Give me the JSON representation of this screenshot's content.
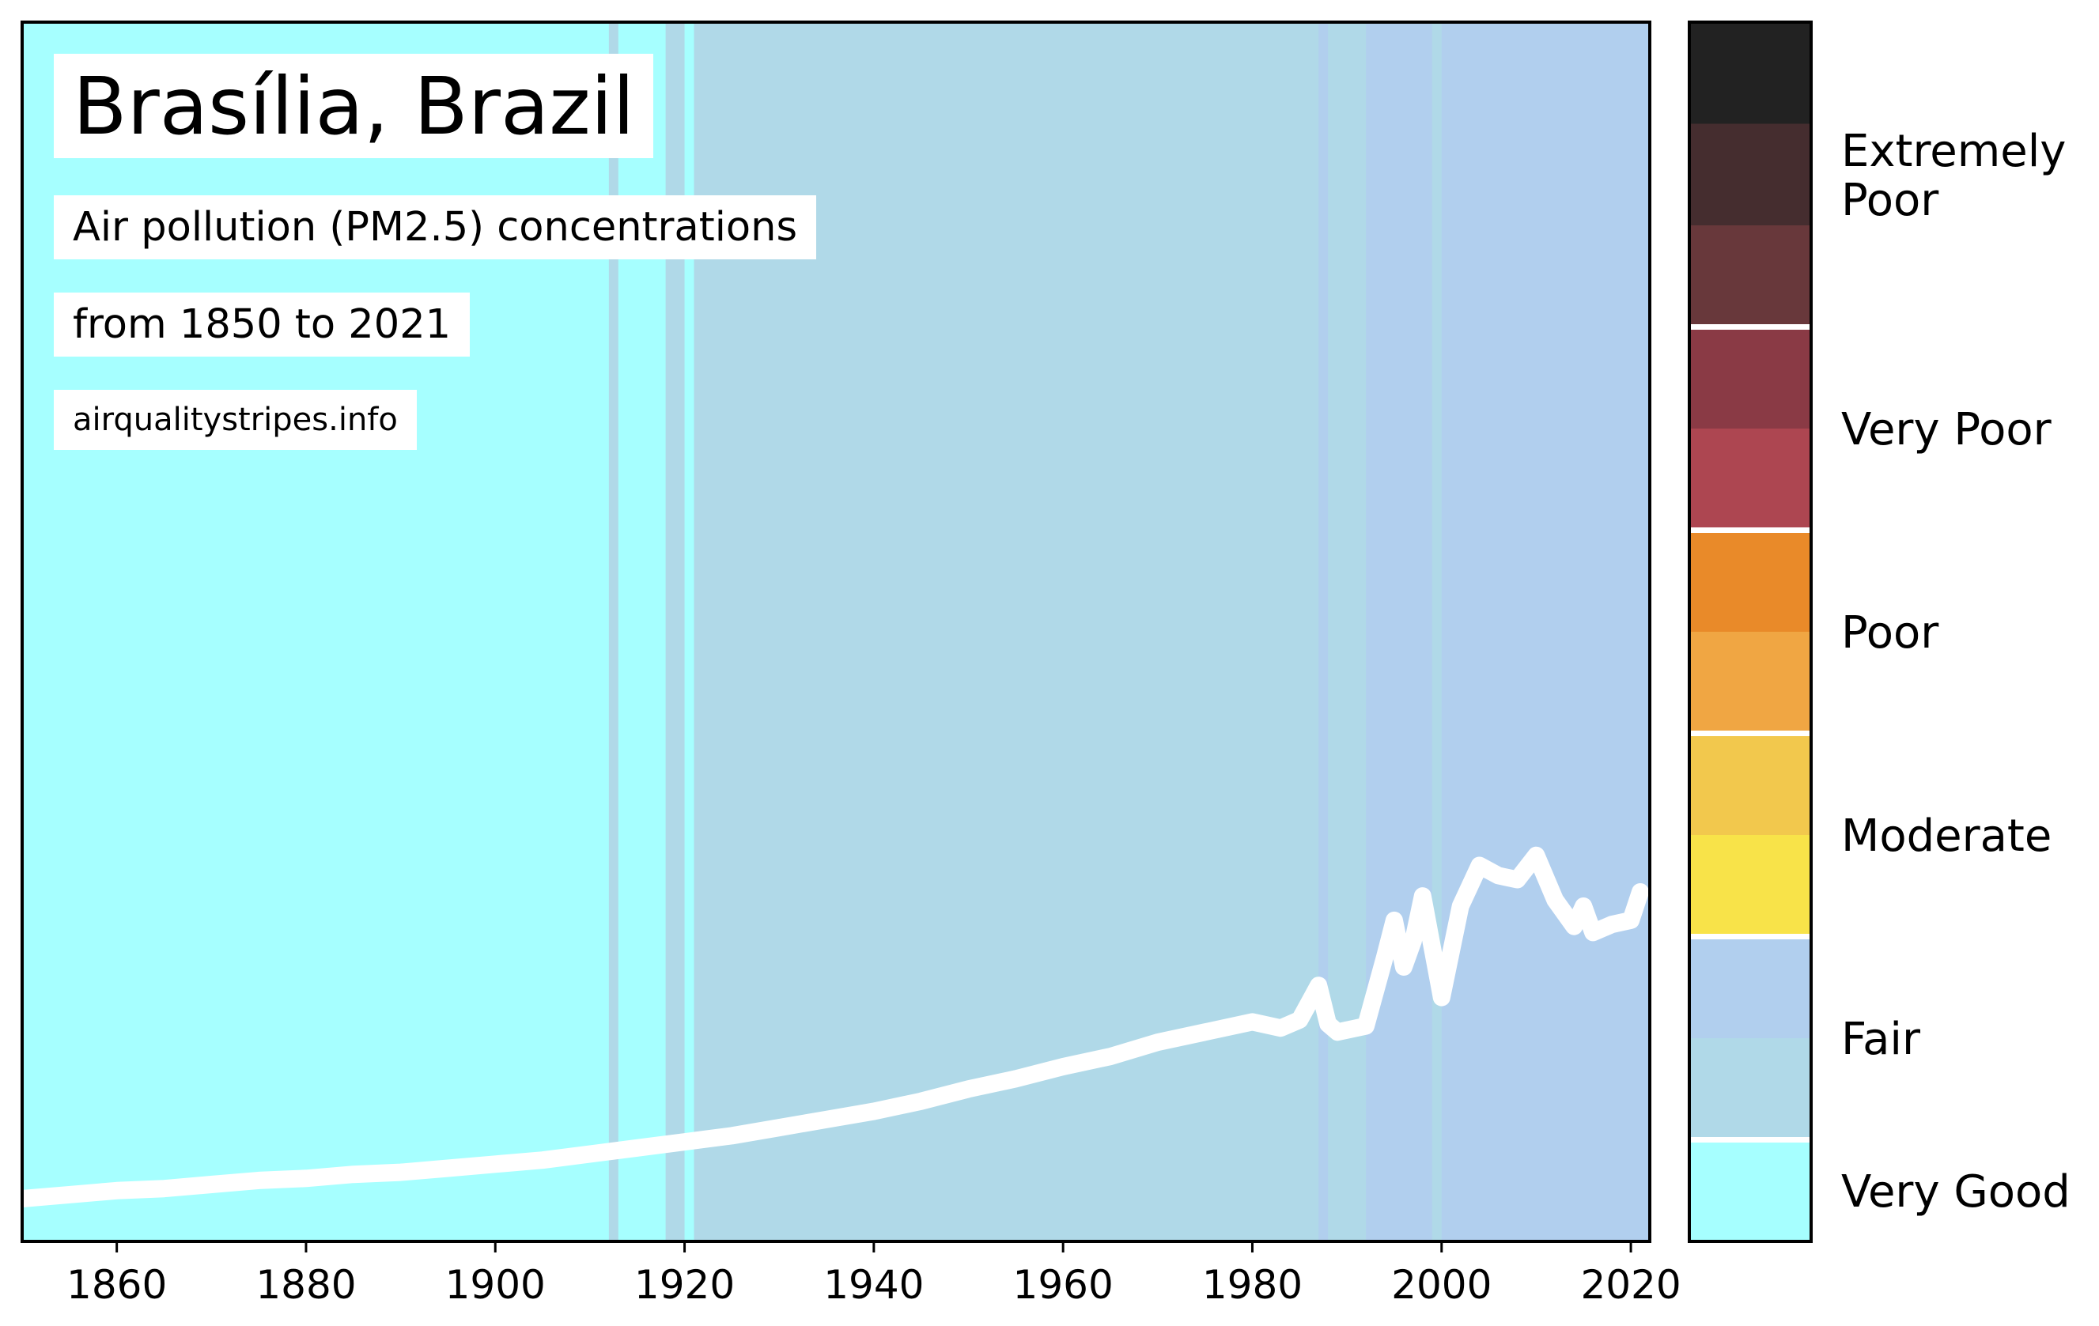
{
  "title": "Brasília, Brazil",
  "subtitle": "Air pollution (PM2.5) concentrations",
  "period": "from 1850 to 2021",
  "source": "airqualitystripes.info",
  "colors": {
    "very_good": "#a6ffff",
    "good": "#b0d9e8",
    "fair": "#b1cfee",
    "line": "#ffffff"
  },
  "chart_data": {
    "type": "line",
    "title": "Brasília, Brazil",
    "xlabel": "",
    "ylabel": "",
    "xlim": [
      1850,
      2022
    ],
    "ylim": [
      0,
      60
    ],
    "grid": false,
    "x_ticks": [
      1860,
      1880,
      1900,
      1920,
      1940,
      1960,
      1980,
      2000,
      2020
    ],
    "stripe_segments": [
      {
        "start": 1850,
        "end": 1912,
        "class": "very_good"
      },
      {
        "start": 1912,
        "end": 1913,
        "class": "good"
      },
      {
        "start": 1913,
        "end": 1918,
        "class": "very_good"
      },
      {
        "start": 1918,
        "end": 1920,
        "class": "good"
      },
      {
        "start": 1920,
        "end": 1921,
        "class": "very_good"
      },
      {
        "start": 1921,
        "end": 1987,
        "class": "good"
      },
      {
        "start": 1987,
        "end": 1988,
        "class": "fair"
      },
      {
        "start": 1988,
        "end": 1992,
        "class": "good"
      },
      {
        "start": 1992,
        "end": 1999,
        "class": "fair"
      },
      {
        "start": 1999,
        "end": 2000,
        "class": "good"
      },
      {
        "start": 2000,
        "end": 2022,
        "class": "fair"
      }
    ],
    "series": [
      {
        "x": [
          1850,
          1855,
          1860,
          1865,
          1870,
          1875,
          1880,
          1885,
          1890,
          1895,
          1900,
          1905,
          1910,
          1915,
          1920,
          1925,
          1930,
          1935,
          1940,
          1945,
          1950,
          1955,
          1960,
          1965,
          1970,
          1975,
          1980,
          1983,
          1985,
          1987,
          1988,
          1989,
          1992,
          1994,
          1995,
          1996,
          1997,
          1998,
          2000,
          2002,
          2004,
          2006,
          2008,
          2010,
          2012,
          2014,
          2015,
          2016,
          2018,
          2020,
          2021
        ],
        "values": [
          2.1,
          2.3,
          2.5,
          2.6,
          2.8,
          3.0,
          3.1,
          3.3,
          3.4,
          3.6,
          3.8,
          4.0,
          4.3,
          4.6,
          4.9,
          5.2,
          5.6,
          6.0,
          6.4,
          6.9,
          7.5,
          8.0,
          8.6,
          9.1,
          9.8,
          10.3,
          10.8,
          10.5,
          10.9,
          12.6,
          10.7,
          10.3,
          10.6,
          14.0,
          15.8,
          13.5,
          14.8,
          17.0,
          12.0,
          16.5,
          18.5,
          18.0,
          17.8,
          19.0,
          16.8,
          15.5,
          16.5,
          15.2,
          15.6,
          15.8,
          17.2
        ]
      }
    ],
    "category_scale": [
      {
        "label": "Extremely Poor",
        "lines": [
          "Extremely",
          "Poor"
        ],
        "colors": [
          "#222222",
          "#452d2f",
          "#68383b"
        ]
      },
      {
        "label": "Very Poor",
        "lines": [
          "Very Poor"
        ],
        "colors": [
          "#8a3a45",
          "#ad4651"
        ]
      },
      {
        "label": "Poor",
        "lines": [
          "Poor"
        ],
        "colors": [
          "#e98a29",
          "#f0a643"
        ]
      },
      {
        "label": "Moderate",
        "lines": [
          "Moderate"
        ],
        "colors": [
          "#f2c84d",
          "#f8e349"
        ]
      },
      {
        "label": "Fair",
        "lines": [
          "Fair"
        ],
        "colors": [
          "#b1cfee",
          "#b0d9e8"
        ]
      },
      {
        "label": "Very Good",
        "lines": [
          "Very Good"
        ],
        "colors": [
          "#a6ffff"
        ]
      }
    ]
  }
}
